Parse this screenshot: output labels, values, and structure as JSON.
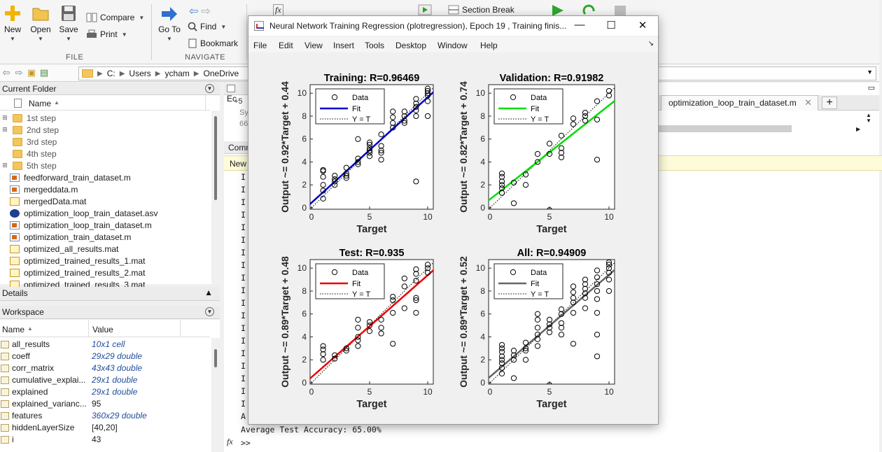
{
  "ribbon": {
    "file": {
      "new_label": "New",
      "open_label": "Open",
      "save_label": "Save",
      "compare_label": "Compare",
      "print_label": "Print",
      "group_label": "FILE"
    },
    "navigate": {
      "goto_label": "Go To",
      "find_label": "Find",
      "bookmark_label": "Bookmark",
      "group_label": "NAVIGATE"
    },
    "run": {
      "fx_label": "fx",
      "section_break_label": "Section Break"
    }
  },
  "address": {
    "path": [
      "C:",
      "Users",
      "ycham",
      "OneDrive"
    ]
  },
  "current_folder": {
    "header": "Current Folder",
    "name_col": "Name",
    "sort_arrow": "▲",
    "items": [
      {
        "name": "1st step",
        "kind": "folder",
        "expandable": true
      },
      {
        "name": "2nd step",
        "kind": "folder",
        "expandable": true
      },
      {
        "name": "3rd step",
        "kind": "folder",
        "expandable": false
      },
      {
        "name": "4th step",
        "kind": "folder",
        "expandable": false
      },
      {
        "name": "5th step",
        "kind": "folder",
        "expandable": true
      },
      {
        "name": "feedforward_train_dataset.m",
        "kind": "m"
      },
      {
        "name": "mergeddata.m",
        "kind": "m"
      },
      {
        "name": "mergedData.mat",
        "kind": "mat"
      },
      {
        "name": "optimization_loop_train_dataset.asv",
        "kind": "asv"
      },
      {
        "name": "optimization_loop_train_dataset.m",
        "kind": "m"
      },
      {
        "name": "optimization_train_dataset.m",
        "kind": "m"
      },
      {
        "name": "optimized_all_results.mat",
        "kind": "mat"
      },
      {
        "name": "optimized_trained_results_1.mat",
        "kind": "mat"
      },
      {
        "name": "optimized_trained_results_2.mat",
        "kind": "mat"
      },
      {
        "name": "optimized_trained_results_3.mat",
        "kind": "mat"
      }
    ]
  },
  "details": {
    "header": "Details",
    "collapse_icon": "▲"
  },
  "workspace": {
    "header": "Workspace",
    "name_col": "Name",
    "value_col": "Value",
    "sort_arrow": "▲",
    "vars": [
      {
        "name": "all_results",
        "value": "10x1 cell",
        "link": true
      },
      {
        "name": "coeff",
        "value": "29x29 double",
        "link": true
      },
      {
        "name": "corr_matrix",
        "value": "43x43 double",
        "link": true
      },
      {
        "name": "cumulative_explai...",
        "value": "29x1 double",
        "link": true
      },
      {
        "name": "explained",
        "value": "29x1 double",
        "link": true
      },
      {
        "name": "explained_varianc...",
        "value": "95",
        "link": false
      },
      {
        "name": "features",
        "value": "360x29 double",
        "link": true
      },
      {
        "name": "hiddenLayerSize",
        "value": "[40,20]",
        "link": false
      },
      {
        "name": "i",
        "value": "43",
        "link": false
      }
    ]
  },
  "editor": {
    "tab_label": "optimization_loop_train_dataset.m",
    "tab_close": "✕",
    "add_tab": "+",
    "panel_abbrev": "Ec",
    "line_snip_1": "+5",
    "line_snip_2": "Sy",
    "line_snip_3": "66"
  },
  "command_window": {
    "header_abbrev": "Comm",
    "new_abbrev": "New",
    "truncated_line_prefix": "I",
    "last_line_prefix": "A",
    "output_line": "Average Test Accuracy: 65.00%",
    "prompt_fx": "fx",
    "prompt": ">>"
  },
  "figure": {
    "title": "Neural Network Training Regression (plotregression), Epoch 19 , Training finis...",
    "minimize": "—",
    "maximize": "☐",
    "close": "✕",
    "menu": [
      "File",
      "Edit",
      "View",
      "Insert",
      "Tools",
      "Desktop",
      "Window",
      "Help"
    ],
    "dock_icon": "↘"
  },
  "chart_data": [
    {
      "type": "scatter",
      "title": "Training: R=0.96469",
      "xlabel": "Target",
      "ylabel": "Output ~= 0.92*Target + 0.44",
      "xlim": [
        0,
        10
      ],
      "ylim": [
        0,
        10.5
      ],
      "xticks": [
        0,
        5,
        10
      ],
      "yticks": [
        0,
        2,
        4,
        6,
        8,
        10
      ],
      "fit_color": "#0000cc",
      "fit": {
        "slope": 0.92,
        "intercept": 0.44
      },
      "legend": [
        "Data",
        "Fit",
        "Y = T"
      ],
      "points": [
        [
          1,
          0.8
        ],
        [
          1,
          1.5
        ],
        [
          1,
          2.0
        ],
        [
          1,
          2.7
        ],
        [
          1,
          3.2
        ],
        [
          1,
          3.3
        ],
        [
          2,
          2.0
        ],
        [
          2,
          2.3
        ],
        [
          2,
          2.5
        ],
        [
          2,
          2.8
        ],
        [
          3,
          2.6
        ],
        [
          3,
          2.8
        ],
        [
          3,
          3.0
        ],
        [
          3,
          3.5
        ],
        [
          4,
          3.8
        ],
        [
          4,
          4.0
        ],
        [
          4,
          4.3
        ],
        [
          4,
          6.0
        ],
        [
          5,
          4.5
        ],
        [
          5,
          4.8
        ],
        [
          5,
          5.0
        ],
        [
          5,
          5.2
        ],
        [
          5,
          5.5
        ],
        [
          5,
          5.7
        ],
        [
          6,
          4.2
        ],
        [
          6,
          4.8
        ],
        [
          6,
          5.0
        ],
        [
          6,
          5.4
        ],
        [
          6,
          6.4
        ],
        [
          7,
          7.0
        ],
        [
          7,
          7.4
        ],
        [
          7,
          7.9
        ],
        [
          7,
          8.4
        ],
        [
          8,
          7.4
        ],
        [
          8,
          7.6
        ],
        [
          8,
          8.0
        ],
        [
          8,
          8.4
        ],
        [
          9,
          2.3
        ],
        [
          9,
          8.0
        ],
        [
          9,
          8.5
        ],
        [
          9,
          8.8
        ],
        [
          9,
          9.1
        ],
        [
          9,
          9.5
        ],
        [
          10,
          8.0
        ],
        [
          10,
          9.3
        ],
        [
          10,
          9.8
        ],
        [
          10,
          10.0
        ],
        [
          10,
          10.2
        ],
        [
          10,
          10.4
        ]
      ]
    },
    {
      "type": "scatter",
      "title": "Validation: R=0.91982",
      "xlabel": "Target",
      "ylabel": "Output ~= 0.82*Target + 0.74",
      "xlim": [
        0,
        10
      ],
      "ylim": [
        0,
        10.5
      ],
      "xticks": [
        0,
        5,
        10
      ],
      "yticks": [
        0,
        2,
        4,
        6,
        8,
        10
      ],
      "fit_color": "#00dd00",
      "fit": {
        "slope": 0.82,
        "intercept": 0.74
      },
      "legend": [
        "Data",
        "Fit",
        "Y = T"
      ],
      "points": [
        [
          1,
          1.3
        ],
        [
          1,
          1.7
        ],
        [
          1,
          2.0
        ],
        [
          1,
          2.3
        ],
        [
          1,
          2.7
        ],
        [
          1,
          3.0
        ],
        [
          2,
          0.4
        ],
        [
          2,
          2.2
        ],
        [
          3,
          2.9
        ],
        [
          3,
          2.0
        ],
        [
          4,
          4.0
        ],
        [
          4,
          4.7
        ],
        [
          5,
          -0.2
        ],
        [
          5,
          4.7
        ],
        [
          5,
          5.6
        ],
        [
          6,
          4.4
        ],
        [
          6,
          4.8
        ],
        [
          6,
          5.2
        ],
        [
          6,
          6.3
        ],
        [
          7,
          7.3
        ],
        [
          7,
          7.8
        ],
        [
          8,
          7.6
        ],
        [
          8,
          8.0
        ],
        [
          8,
          8.3
        ],
        [
          9,
          4.2
        ],
        [
          9,
          7.7
        ],
        [
          9,
          9.3
        ],
        [
          10,
          9.8
        ],
        [
          10,
          10.2
        ]
      ]
    },
    {
      "type": "scatter",
      "title": "Test: R=0.935",
      "xlabel": "Target",
      "ylabel": "Output ~= 0.89*Target + 0.48",
      "xlim": [
        0,
        10
      ],
      "ylim": [
        0,
        10.5
      ],
      "xticks": [
        0,
        5,
        10
      ],
      "yticks": [
        0,
        2,
        4,
        6,
        8,
        10
      ],
      "fit_color": "#ee0000",
      "fit": {
        "slope": 0.89,
        "intercept": 0.48
      },
      "legend": [
        "Data",
        "Fit",
        "Y = T"
      ],
      "points": [
        [
          1,
          2.0
        ],
        [
          1,
          2.5
        ],
        [
          1,
          2.9
        ],
        [
          1,
          3.2
        ],
        [
          2,
          2.1
        ],
        [
          2,
          2.4
        ],
        [
          3,
          2.8
        ],
        [
          3,
          3.0
        ],
        [
          4,
          3.2
        ],
        [
          4,
          3.7
        ],
        [
          4,
          4.0
        ],
        [
          4,
          4.8
        ],
        [
          4,
          5.5
        ],
        [
          5,
          4.5
        ],
        [
          5,
          5.0
        ],
        [
          5,
          5.3
        ],
        [
          6,
          4.3
        ],
        [
          6,
          4.8
        ],
        [
          6,
          5.5
        ],
        [
          7,
          3.4
        ],
        [
          7,
          6.1
        ],
        [
          7,
          7.2
        ],
        [
          7,
          7.5
        ],
        [
          8,
          6.5
        ],
        [
          8,
          8.4
        ],
        [
          8,
          9.1
        ],
        [
          9,
          6.1
        ],
        [
          9,
          7.2
        ],
        [
          9,
          7.4
        ],
        [
          9,
          8.9
        ],
        [
          9,
          9.5
        ],
        [
          9,
          9.9
        ],
        [
          10,
          9.6
        ],
        [
          10,
          10.0
        ],
        [
          10,
          10.3
        ]
      ]
    },
    {
      "type": "scatter",
      "title": "All: R=0.94909",
      "xlabel": "Target",
      "ylabel": "Output ~= 0.89*Target + 0.52",
      "xlim": [
        0,
        10
      ],
      "ylim": [
        0,
        10.5
      ],
      "xticks": [
        0,
        5,
        10
      ],
      "yticks": [
        0,
        2,
        4,
        6,
        8,
        10
      ],
      "fit_color": "#666666",
      "fit": {
        "slope": 0.89,
        "intercept": 0.52
      },
      "legend": [
        "Data",
        "Fit",
        "Y = T"
      ],
      "points": [
        [
          1,
          0.8
        ],
        [
          1,
          1.3
        ],
        [
          1,
          1.7
        ],
        [
          1,
          2.0
        ],
        [
          1,
          2.3
        ],
        [
          1,
          2.7
        ],
        [
          1,
          3.0
        ],
        [
          1,
          3.3
        ],
        [
          2,
          0.4
        ],
        [
          2,
          2.0
        ],
        [
          2,
          2.4
        ],
        [
          2,
          2.8
        ],
        [
          3,
          2.0
        ],
        [
          3,
          2.8
        ],
        [
          3,
          3.0
        ],
        [
          3,
          3.5
        ],
        [
          4,
          3.2
        ],
        [
          4,
          3.8
        ],
        [
          4,
          4.2
        ],
        [
          4,
          4.8
        ],
        [
          4,
          5.5
        ],
        [
          4,
          6.0
        ],
        [
          5,
          -0.2
        ],
        [
          5,
          4.4
        ],
        [
          5,
          4.8
        ],
        [
          5,
          5.1
        ],
        [
          5,
          5.5
        ],
        [
          6,
          4.2
        ],
        [
          6,
          4.8
        ],
        [
          6,
          5.2
        ],
        [
          6,
          6.0
        ],
        [
          6,
          6.4
        ],
        [
          7,
          3.4
        ],
        [
          7,
          6.1
        ],
        [
          7,
          7.0
        ],
        [
          7,
          7.4
        ],
        [
          7,
          7.9
        ],
        [
          7,
          8.4
        ],
        [
          8,
          6.5
        ],
        [
          8,
          7.4
        ],
        [
          8,
          7.8
        ],
        [
          8,
          8.2
        ],
        [
          8,
          8.6
        ],
        [
          8,
          9.0
        ],
        [
          9,
          2.3
        ],
        [
          9,
          4.2
        ],
        [
          9,
          6.1
        ],
        [
          9,
          7.3
        ],
        [
          9,
          8.0
        ],
        [
          9,
          8.6
        ],
        [
          9,
          9.2
        ],
        [
          9,
          9.8
        ],
        [
          10,
          8.0
        ],
        [
          10,
          9.0
        ],
        [
          10,
          9.6
        ],
        [
          10,
          10.0
        ],
        [
          10,
          10.3
        ],
        [
          10,
          10.5
        ]
      ]
    }
  ]
}
